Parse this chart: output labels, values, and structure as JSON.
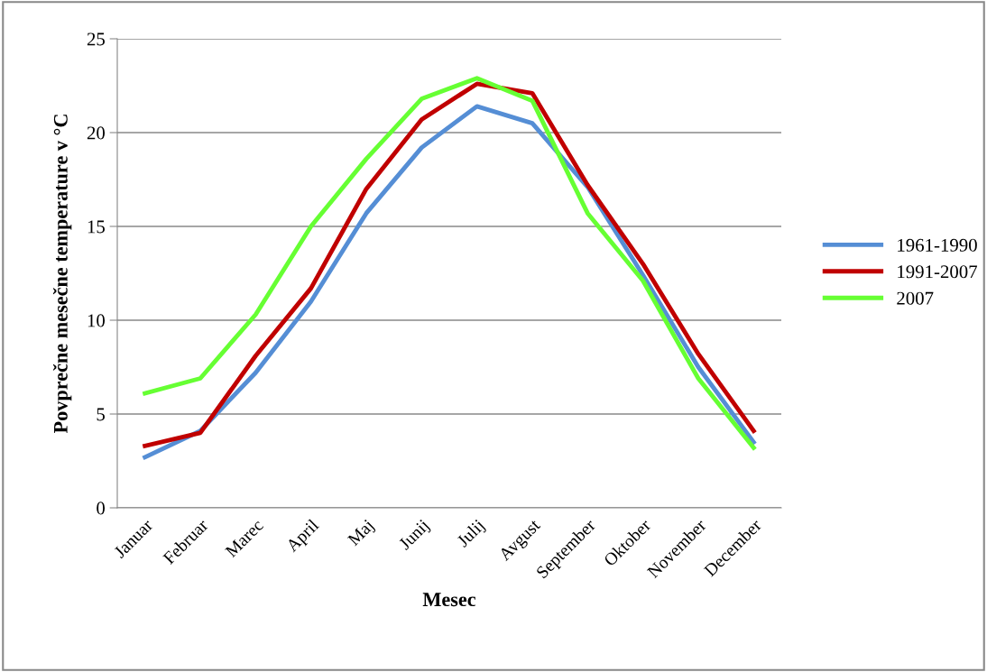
{
  "chart_data": {
    "type": "line",
    "xlabel": "Mesec",
    "ylabel": "Povprečne mesečne temperature v °C",
    "categories": [
      "Januar",
      "Februar",
      "Marec",
      "April",
      "Maj",
      "Junij",
      "Julij",
      "Avgust",
      "September",
      "Oktober",
      "November",
      "December"
    ],
    "series": [
      {
        "name": "1961-1990",
        "color": "#558ed5",
        "values": [
          2.7,
          4.1,
          7.2,
          11.0,
          15.7,
          19.2,
          21.4,
          20.5,
          17.1,
          12.4,
          7.5,
          3.5
        ]
      },
      {
        "name": "1991-2007",
        "color": "#c00000",
        "values": [
          3.3,
          4.0,
          8.1,
          11.7,
          17.0,
          20.7,
          22.6,
          22.1,
          17.2,
          13.0,
          8.2,
          4.1
        ]
      },
      {
        "name": "2007",
        "color": "#66ff33",
        "values": [
          6.1,
          6.9,
          10.3,
          15.0,
          18.6,
          21.8,
          22.9,
          21.7,
          15.7,
          12.1,
          6.9,
          3.2
        ]
      }
    ],
    "ylim": [
      0,
      25
    ],
    "yticks": [
      0,
      5,
      10,
      15,
      20,
      25
    ],
    "grid": "y",
    "legend": "right",
    "marker": "none",
    "line_style": "solid"
  }
}
